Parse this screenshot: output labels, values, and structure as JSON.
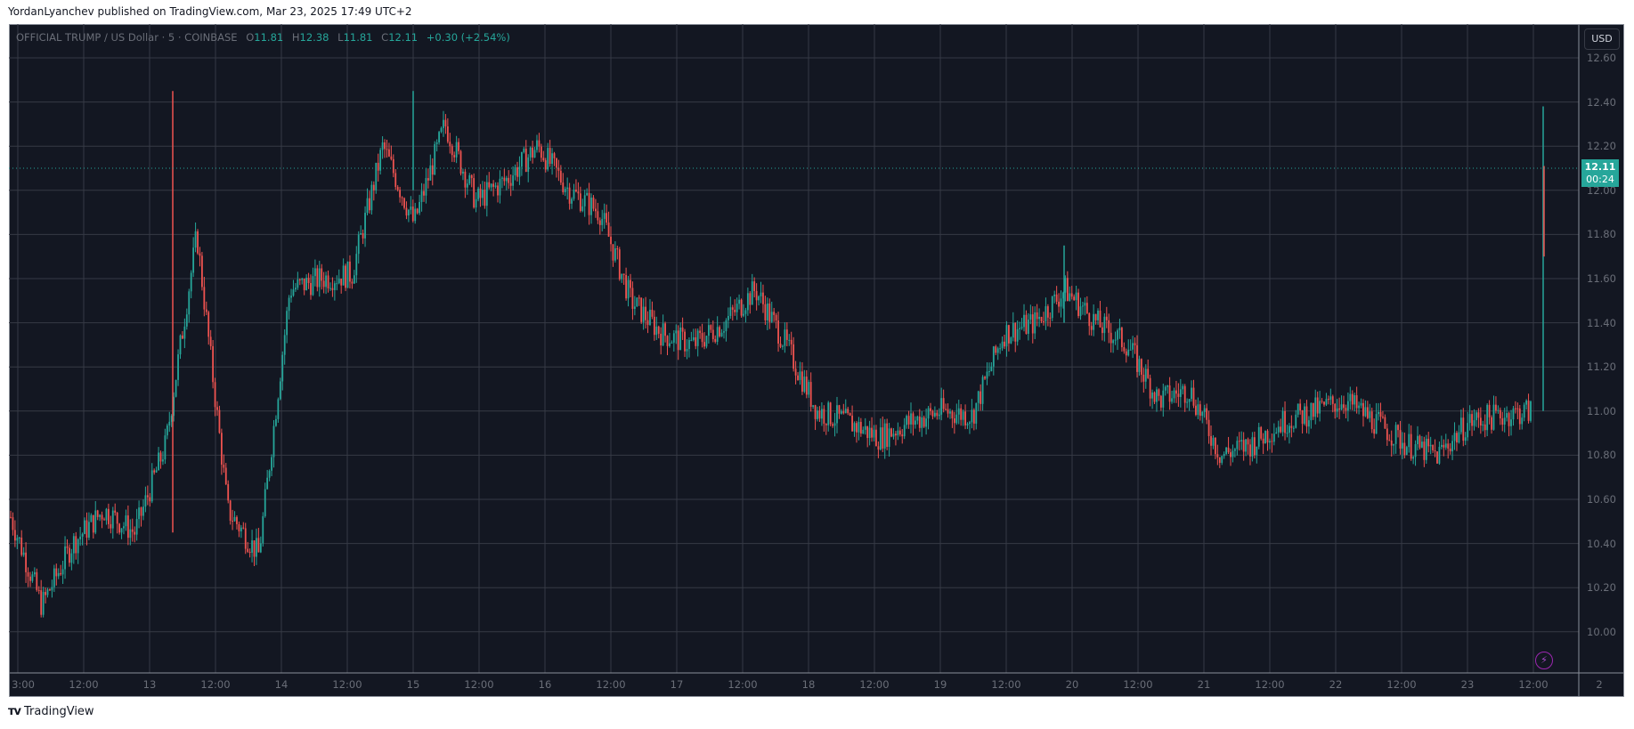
{
  "publish_line": "YordanLyanchev published on TradingView.com, Mar 23, 2025 17:49 UTC+2",
  "legend": {
    "symbol": "OFFICIAL TRUMP / US Dollar · 5 · COINBASE",
    "o_label": "O",
    "o": "11.81",
    "h_label": "H",
    "h": "12.38",
    "l_label": "L",
    "l": "11.81",
    "c_label": "C",
    "c": "12.11",
    "change": "+0.30 (+2.54%)"
  },
  "price_axis": {
    "currency_button": "USD",
    "labels": [
      "12.60",
      "12.40",
      "12.20",
      "12.00",
      "11.80",
      "11.60",
      "11.40",
      "11.20",
      "11.00",
      "10.80",
      "10.60",
      "10.40",
      "10.20",
      "10.00"
    ],
    "last_price": "12.11",
    "countdown": "00:24"
  },
  "time_axis": {
    "labels": [
      "3:00",
      "12:00",
      "13",
      "12:00",
      "14",
      "12:00",
      "15",
      "12:00",
      "16",
      "12:00",
      "17",
      "12:00",
      "18",
      "12:00",
      "19",
      "12:00",
      "20",
      "12:00",
      "21",
      "12:00",
      "22",
      "12:00",
      "23",
      "12:00",
      "2"
    ]
  },
  "footer": {
    "brand": "TradingView",
    "mark": "TV"
  },
  "colors": {
    "up": "#26a69a",
    "down": "#ef5350",
    "bg": "#131722",
    "grid": "#363a45",
    "text": "#6a6e78",
    "accent": "#9c27b0"
  },
  "chart_data": {
    "type": "candlestick",
    "title": "OFFICIAL TRUMP / US Dollar · 5 · COINBASE",
    "interval": "5",
    "xlabel": "",
    "ylabel": "USD",
    "ylim": [
      9.9,
      12.7
    ],
    "grid": true,
    "last": {
      "open": 11.81,
      "high": 12.38,
      "low": 11.81,
      "close": 12.11,
      "change": 0.3,
      "change_pct": 2.54
    },
    "x": [
      "12 03:00",
      "12 12:00",
      "12 18:00",
      "13 00:00",
      "13 06:00",
      "13 12:00",
      "13 15:00",
      "13 18:00",
      "13 21:00",
      "14 00:00",
      "14 06:00",
      "14 12:00",
      "14 18:00",
      "15 00:00",
      "15 06:00",
      "15 12:00",
      "15 18:00",
      "16 00:00",
      "16 06:00",
      "16 12:00",
      "16 18:00",
      "17 00:00",
      "17 06:00",
      "17 12:00",
      "17 18:00",
      "18 00:00",
      "18 06:00",
      "18 12:00",
      "18 18:00",
      "19 00:00",
      "19 06:00",
      "19 12:00",
      "19 18:00",
      "20 00:00",
      "20 06:00",
      "20 12:00",
      "20 18:00",
      "21 00:00",
      "21 06:00",
      "21 12:00",
      "21 18:00",
      "22 00:00",
      "22 06:00",
      "22 12:00",
      "22 18:00",
      "23 00:00",
      "23 06:00",
      "23 12:00",
      "23 16:00",
      "23 17:00",
      "23 17:45"
    ],
    "close": [
      10.52,
      10.12,
      10.4,
      10.55,
      10.45,
      10.85,
      11.8,
      10.55,
      10.35,
      11.55,
      11.6,
      11.62,
      12.2,
      11.85,
      12.3,
      11.95,
      12.05,
      12.2,
      12.0,
      11.9,
      11.5,
      11.35,
      11.3,
      11.4,
      11.55,
      11.3,
      11.0,
      10.95,
      10.88,
      10.95,
      11.0,
      10.98,
      11.35,
      11.4,
      11.55,
      11.4,
      11.3,
      11.05,
      11.1,
      10.8,
      10.85,
      10.95,
      11.0,
      11.05,
      10.95,
      10.85,
      10.8,
      10.95,
      10.98,
      11.0,
      12.11
    ],
    "highs_notable": [
      {
        "x": "13 09:00",
        "value": 12.45
      },
      {
        "x": "15 03:00",
        "value": 12.45
      },
      {
        "x": "20 00:00",
        "value": 11.75
      },
      {
        "x": "23 17:45",
        "value": 12.38
      }
    ]
  }
}
